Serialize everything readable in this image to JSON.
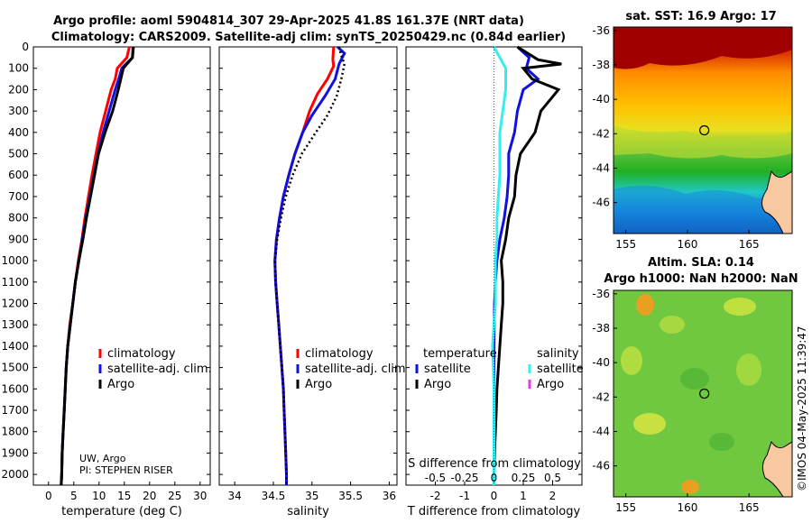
{
  "title": {
    "line1": "Argo profile: aoml 5904814_307 29-Apr-2025 41.8S 161.37E (NRT data)",
    "line2": "Climatology: CARS2009. Satellite-adj clim: synTS_20250429.nc (0.84d earlier)"
  },
  "colors": {
    "climatology": "#ff0000",
    "satellite": "#1010e0",
    "argo": "#000000",
    "sat_temp": "#33eeee",
    "sat_sal": "#ee33ee"
  },
  "annotation": {
    "line1": "UW, Argo",
    "line2": "PI: STEPHEN RISER"
  },
  "stamp": "©IMOS 04-May-2025 11:39:47",
  "chart_data": [
    {
      "type": "line",
      "panel": "temperature",
      "xlabel": "temperature (deg C)",
      "ylabel": "",
      "xlim": [
        -3,
        32
      ],
      "ylim": [
        2050,
        0
      ],
      "xticks": [
        0,
        5,
        10,
        15,
        20,
        25,
        30
      ],
      "yticks": [
        0,
        100,
        200,
        300,
        400,
        500,
        600,
        700,
        800,
        900,
        1000,
        1100,
        1200,
        1300,
        1400,
        1500,
        1600,
        1700,
        1800,
        1900,
        2000
      ],
      "legend": [
        "climatology",
        "satellite-adj. clim.",
        "Argo"
      ],
      "series": [
        {
          "name": "climatology",
          "style": "solid",
          "color": "#ff0000",
          "points": [
            [
              16.0,
              0
            ],
            [
              15.5,
              50
            ],
            [
              13.6,
              100
            ],
            [
              13.2,
              150
            ],
            [
              12.4,
              200
            ],
            [
              11.3,
              300
            ],
            [
              10.2,
              400
            ],
            [
              9.4,
              500
            ],
            [
              8.6,
              600
            ],
            [
              7.9,
              700
            ],
            [
              7.2,
              800
            ],
            [
              6.6,
              900
            ],
            [
              5.9,
              1000
            ],
            [
              5.3,
              1100
            ],
            [
              4.8,
              1200
            ],
            [
              4.2,
              1300
            ],
            [
              3.8,
              1400
            ],
            [
              3.5,
              1500
            ],
            [
              3.3,
              1600
            ],
            [
              3.1,
              1700
            ],
            [
              2.9,
              1800
            ],
            [
              2.7,
              1900
            ],
            [
              2.6,
              2000
            ],
            [
              2.5,
              2050
            ]
          ]
        },
        {
          "name": "satellite-adj. clim.",
          "style": "solid",
          "color": "#1010e0",
          "points": [
            [
              16.7,
              0
            ],
            [
              16.6,
              50
            ],
            [
              14.5,
              100
            ],
            [
              13.9,
              150
            ],
            [
              13.2,
              200
            ],
            [
              12.0,
              300
            ],
            [
              10.8,
              400
            ],
            [
              9.8,
              500
            ],
            [
              9.0,
              600
            ],
            [
              8.2,
              700
            ],
            [
              7.4,
              800
            ],
            [
              6.7,
              900
            ],
            [
              6.0,
              1000
            ],
            [
              5.3,
              1100
            ],
            [
              4.8,
              1200
            ],
            [
              4.3,
              1300
            ],
            [
              3.8,
              1400
            ],
            [
              3.5,
              1500
            ],
            [
              3.3,
              1600
            ],
            [
              3.1,
              1700
            ],
            [
              2.9,
              1800
            ],
            [
              2.7,
              1900
            ],
            [
              2.6,
              2000
            ],
            [
              2.5,
              2050
            ]
          ]
        },
        {
          "name": "Argo",
          "style": "solid",
          "color": "#000000",
          "points": [
            [
              16.8,
              0
            ],
            [
              16.6,
              50
            ],
            [
              14.8,
              100
            ],
            [
              14.3,
              150
            ],
            [
              13.8,
              200
            ],
            [
              12.7,
              300
            ],
            [
              11.2,
              400
            ],
            [
              9.9,
              500
            ],
            [
              9.1,
              600
            ],
            [
              8.3,
              700
            ],
            [
              7.5,
              800
            ],
            [
              6.8,
              900
            ],
            [
              6.0,
              1000
            ],
            [
              5.3,
              1100
            ],
            [
              4.8,
              1200
            ],
            [
              4.3,
              1300
            ],
            [
              3.8,
              1400
            ],
            [
              3.5,
              1500
            ],
            [
              3.3,
              1600
            ],
            [
              3.1,
              1700
            ],
            [
              2.9,
              1800
            ],
            [
              2.7,
              1900
            ],
            [
              2.6,
              2000
            ],
            [
              2.5,
              2050
            ]
          ]
        }
      ]
    },
    {
      "type": "line",
      "panel": "salinity",
      "xlabel": "salinity",
      "ylabel": "",
      "xlim": [
        33.8,
        36.1
      ],
      "ylim": [
        2050,
        0
      ],
      "xticks": [
        34,
        34.5,
        35,
        35.5,
        36
      ],
      "xtick_labels": [
        "34",
        "34.5",
        "35",
        "35.5",
        "36"
      ],
      "legend": [
        "climatology",
        "satellite-adj. clim.",
        "Argo"
      ],
      "series": [
        {
          "name": "climatology",
          "style": "solid",
          "color": "#ff0000",
          "points": [
            [
              35.28,
              0
            ],
            [
              35.27,
              60
            ],
            [
              35.28,
              90
            ],
            [
              35.2,
              150
            ],
            [
              35.07,
              220
            ],
            [
              34.97,
              300
            ],
            [
              34.88,
              400
            ],
            [
              34.78,
              500
            ],
            [
              34.7,
              600
            ],
            [
              34.63,
              700
            ],
            [
              34.58,
              800
            ],
            [
              34.54,
              900
            ],
            [
              34.52,
              1000
            ],
            [
              34.53,
              1100
            ],
            [
              34.55,
              1200
            ],
            [
              34.57,
              1300
            ],
            [
              34.59,
              1400
            ],
            [
              34.61,
              1500
            ],
            [
              34.63,
              1600
            ],
            [
              34.64,
              1700
            ],
            [
              34.65,
              1800
            ],
            [
              34.66,
              1900
            ],
            [
              34.67,
              2000
            ],
            [
              34.67,
              2050
            ]
          ]
        },
        {
          "name": "satellite-adj. clim.",
          "style": "solid",
          "color": "#1010e0",
          "points": [
            [
              35.33,
              0
            ],
            [
              35.42,
              30
            ],
            [
              35.35,
              80
            ],
            [
              35.3,
              150
            ],
            [
              35.17,
              230
            ],
            [
              35.0,
              320
            ],
            [
              34.88,
              400
            ],
            [
              34.78,
              500
            ],
            [
              34.7,
              600
            ],
            [
              34.63,
              700
            ],
            [
              34.58,
              800
            ],
            [
              34.54,
              900
            ],
            [
              34.52,
              1000
            ],
            [
              34.53,
              1100
            ],
            [
              34.55,
              1200
            ],
            [
              34.57,
              1300
            ],
            [
              34.59,
              1400
            ],
            [
              34.61,
              1500
            ],
            [
              34.63,
              1600
            ],
            [
              34.64,
              1700
            ],
            [
              34.65,
              1800
            ],
            [
              34.66,
              1900
            ],
            [
              34.67,
              2000
            ],
            [
              34.67,
              2050
            ]
          ]
        },
        {
          "name": "Argo",
          "style": "dotted",
          "color": "#000000",
          "points": [
            [
              35.35,
              0
            ],
            [
              35.38,
              40
            ],
            [
              35.42,
              80
            ],
            [
              35.38,
              150
            ],
            [
              35.32,
              230
            ],
            [
              35.2,
              320
            ],
            [
              35.05,
              400
            ],
            [
              34.87,
              500
            ],
            [
              34.75,
              600
            ],
            [
              34.66,
              700
            ],
            [
              34.6,
              800
            ],
            [
              34.55,
              900
            ],
            [
              34.52,
              1000
            ],
            [
              34.53,
              1100
            ],
            [
              34.55,
              1200
            ],
            [
              34.57,
              1300
            ],
            [
              34.59,
              1400
            ],
            [
              34.61,
              1500
            ],
            [
              34.63,
              1600
            ],
            [
              34.64,
              1700
            ],
            [
              34.65,
              1800
            ],
            [
              34.66,
              1900
            ],
            [
              34.67,
              2000
            ],
            [
              34.67,
              2050
            ]
          ]
        }
      ]
    },
    {
      "type": "line",
      "panel": "difference",
      "xlabel": "T difference from climatology",
      "xlabel_top": "S difference from climatology",
      "ylabel": "",
      "xlim": [
        -3,
        3
      ],
      "ylim": [
        2050,
        0
      ],
      "xticks": [
        -2,
        -1,
        0,
        1,
        2
      ],
      "s_ticks": [
        "-0.5",
        "-0.25",
        "0",
        "0.25",
        "0.5"
      ],
      "legend_titles": [
        "temperature",
        "salinity"
      ],
      "legend": [
        "satellite",
        "Argo",
        "satellite",
        "Argo"
      ],
      "series": [
        {
          "name": "temperature satellite",
          "color": "#1010e0",
          "points": [
            [
              0.8,
              0
            ],
            [
              1.2,
              50
            ],
            [
              1.1,
              100
            ],
            [
              1.5,
              150
            ],
            [
              1.0,
              200
            ],
            [
              0.8,
              300
            ],
            [
              0.7,
              400
            ],
            [
              0.5,
              500
            ],
            [
              0.5,
              600
            ],
            [
              0.45,
              700
            ],
            [
              0.35,
              800
            ],
            [
              0.2,
              900
            ],
            [
              0.1,
              1000
            ],
            [
              0.05,
              1100
            ],
            [
              0.02,
              1200
            ],
            [
              0.01,
              1300
            ],
            [
              0.0,
              1400
            ],
            [
              0.0,
              1600
            ],
            [
              0.0,
              2050
            ]
          ]
        },
        {
          "name": "temperature Argo",
          "color": "#000000",
          "points": [
            [
              0.8,
              0
            ],
            [
              1.5,
              60
            ],
            [
              2.3,
              80
            ],
            [
              1.0,
              100
            ],
            [
              1.3,
              150
            ],
            [
              2.2,
              200
            ],
            [
              1.6,
              300
            ],
            [
              1.4,
              400
            ],
            [
              0.9,
              500
            ],
            [
              0.75,
              600
            ],
            [
              0.7,
              700
            ],
            [
              0.5,
              800
            ],
            [
              0.4,
              900
            ],
            [
              0.25,
              1000
            ],
            [
              0.3,
              1100
            ],
            [
              0.3,
              1200
            ],
            [
              0.25,
              1300
            ],
            [
              0.2,
              1400
            ],
            [
              0.15,
              1500
            ],
            [
              0.1,
              1600
            ],
            [
              0.08,
              1700
            ],
            [
              0.05,
              1800
            ],
            [
              0.02,
              1900
            ],
            [
              0.0,
              2000
            ],
            [
              0.0,
              2050
            ]
          ]
        },
        {
          "name": "salinity satellite",
          "color": "#33eeee",
          "points": [
            [
              0.0,
              0
            ],
            [
              0.2,
              50
            ],
            [
              0.4,
              100
            ],
            [
              0.4,
              200
            ],
            [
              0.3,
              300
            ],
            [
              0.2,
              400
            ],
            [
              0.2,
              500
            ],
            [
              0.2,
              600
            ],
            [
              0.15,
              700
            ],
            [
              0.1,
              800
            ],
            [
              0.1,
              900
            ],
            [
              0.05,
              1000
            ],
            [
              0.05,
              1200
            ],
            [
              0.0,
              1300
            ],
            [
              -0.05,
              1400
            ],
            [
              0.0,
              1600
            ],
            [
              0.0,
              2050
            ]
          ]
        }
      ]
    },
    {
      "type": "heatmap",
      "panel": "sst_map",
      "title": "sat. SST: 16.9 Argo: 17",
      "xticks": [
        155,
        160,
        165
      ],
      "yticks": [
        -36,
        -38,
        -40,
        -42,
        -44,
        -46
      ],
      "xlim": [
        154,
        168.5
      ],
      "ylim": [
        -47.8,
        -35.8
      ],
      "marker": {
        "lon": 161.37,
        "lat": -41.8
      }
    },
    {
      "type": "heatmap",
      "panel": "sla_map",
      "title_line1": "Altim. SLA: 0.14",
      "title_line2": "Argo h1000: NaN h2000: NaN",
      "xticks": [
        155,
        160,
        165
      ],
      "yticks": [
        -36,
        -38,
        -40,
        -42,
        -44,
        -46
      ],
      "xlim": [
        154,
        168.5
      ],
      "ylim": [
        -47.8,
        -35.8
      ],
      "marker": {
        "lon": 161.37,
        "lat": -41.8
      }
    }
  ]
}
